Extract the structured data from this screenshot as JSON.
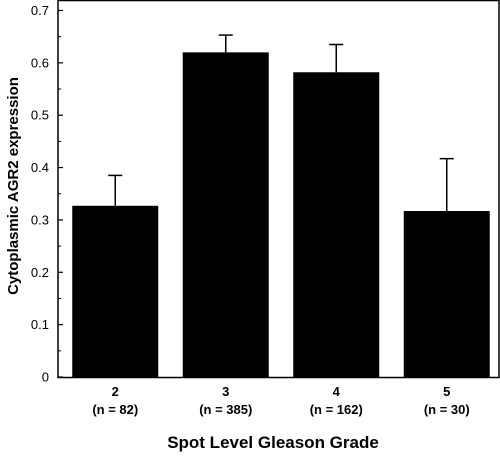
{
  "chart_data": {
    "type": "bar",
    "categories": [
      "2",
      "3",
      "4",
      "5"
    ],
    "category_sublabels": [
      "(n = 82)",
      "(n = 385)",
      "(n = 162)",
      "(n = 30)"
    ],
    "values": [
      0.327,
      0.62,
      0.582,
      0.317
    ],
    "error_upper": [
      0.385,
      0.653,
      0.635,
      0.417
    ],
    "xlabel": "Spot Level Gleason Grade",
    "ylabel": "Cytoplasmic AGR2 expression",
    "ylim": [
      0,
      0.72
    ],
    "yticks": [
      "0",
      "0.1",
      "0.2",
      "0.3",
      "0.4",
      "0.5",
      "0.6",
      "0.7"
    ],
    "ytick_values": [
      0,
      0.1,
      0.2,
      0.3,
      0.4,
      0.5,
      0.6,
      0.7
    ],
    "grid": false,
    "bar_color": "#000000"
  }
}
